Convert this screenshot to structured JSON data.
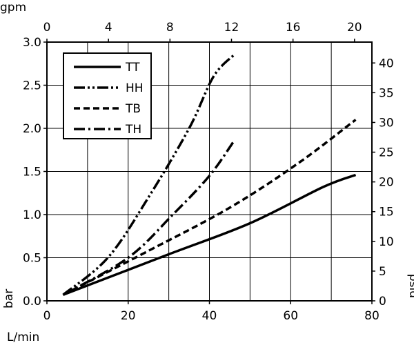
{
  "chart_data": {
    "type": "line",
    "title": "",
    "xlabel": "L/min",
    "ylabel": "bar",
    "x2label": "gpm",
    "y2label": "psid",
    "xlim": [
      0,
      80
    ],
    "ylim": [
      0,
      3
    ],
    "x2lim": [
      0,
      21.13
    ],
    "y2lim": [
      0,
      43.51
    ],
    "xticks": [
      "0",
      "20",
      "40",
      "60",
      "80"
    ],
    "yticks": [
      "0.0",
      "0.5",
      "1.0",
      "1.5",
      "2.0",
      "2.5",
      "3.0"
    ],
    "x2ticks": [
      "0",
      "4",
      "8",
      "12",
      "16",
      "20"
    ],
    "y2ticks": [
      "0",
      "5",
      "10",
      "15",
      "20",
      "25",
      "30",
      "35",
      "40"
    ],
    "grid": true,
    "legend": "top-left",
    "series": [
      {
        "name": "TT",
        "style": "solid",
        "points": [
          [
            4,
            0.07
          ],
          [
            30,
            0.54
          ],
          [
            50,
            0.9
          ],
          [
            68,
            1.32
          ],
          [
            76,
            1.46
          ]
        ]
      },
      {
        "name": "HH",
        "style": "dash-dot-dot",
        "points": [
          [
            4,
            0.07
          ],
          [
            15,
            0.5
          ],
          [
            25,
            1.2
          ],
          [
            35,
            2.0
          ],
          [
            41,
            2.6
          ],
          [
            46,
            2.85
          ]
        ]
      },
      {
        "name": "TB",
        "style": "dashed",
        "points": [
          [
            4,
            0.07
          ],
          [
            25,
            0.58
          ],
          [
            45,
            1.08
          ],
          [
            62,
            1.6
          ],
          [
            76,
            2.1
          ]
        ]
      },
      {
        "name": "TH",
        "style": "dash-dot",
        "points": [
          [
            4,
            0.07
          ],
          [
            20,
            0.5
          ],
          [
            31,
            1.0
          ],
          [
            40,
            1.45
          ],
          [
            46,
            1.85
          ]
        ]
      }
    ]
  }
}
